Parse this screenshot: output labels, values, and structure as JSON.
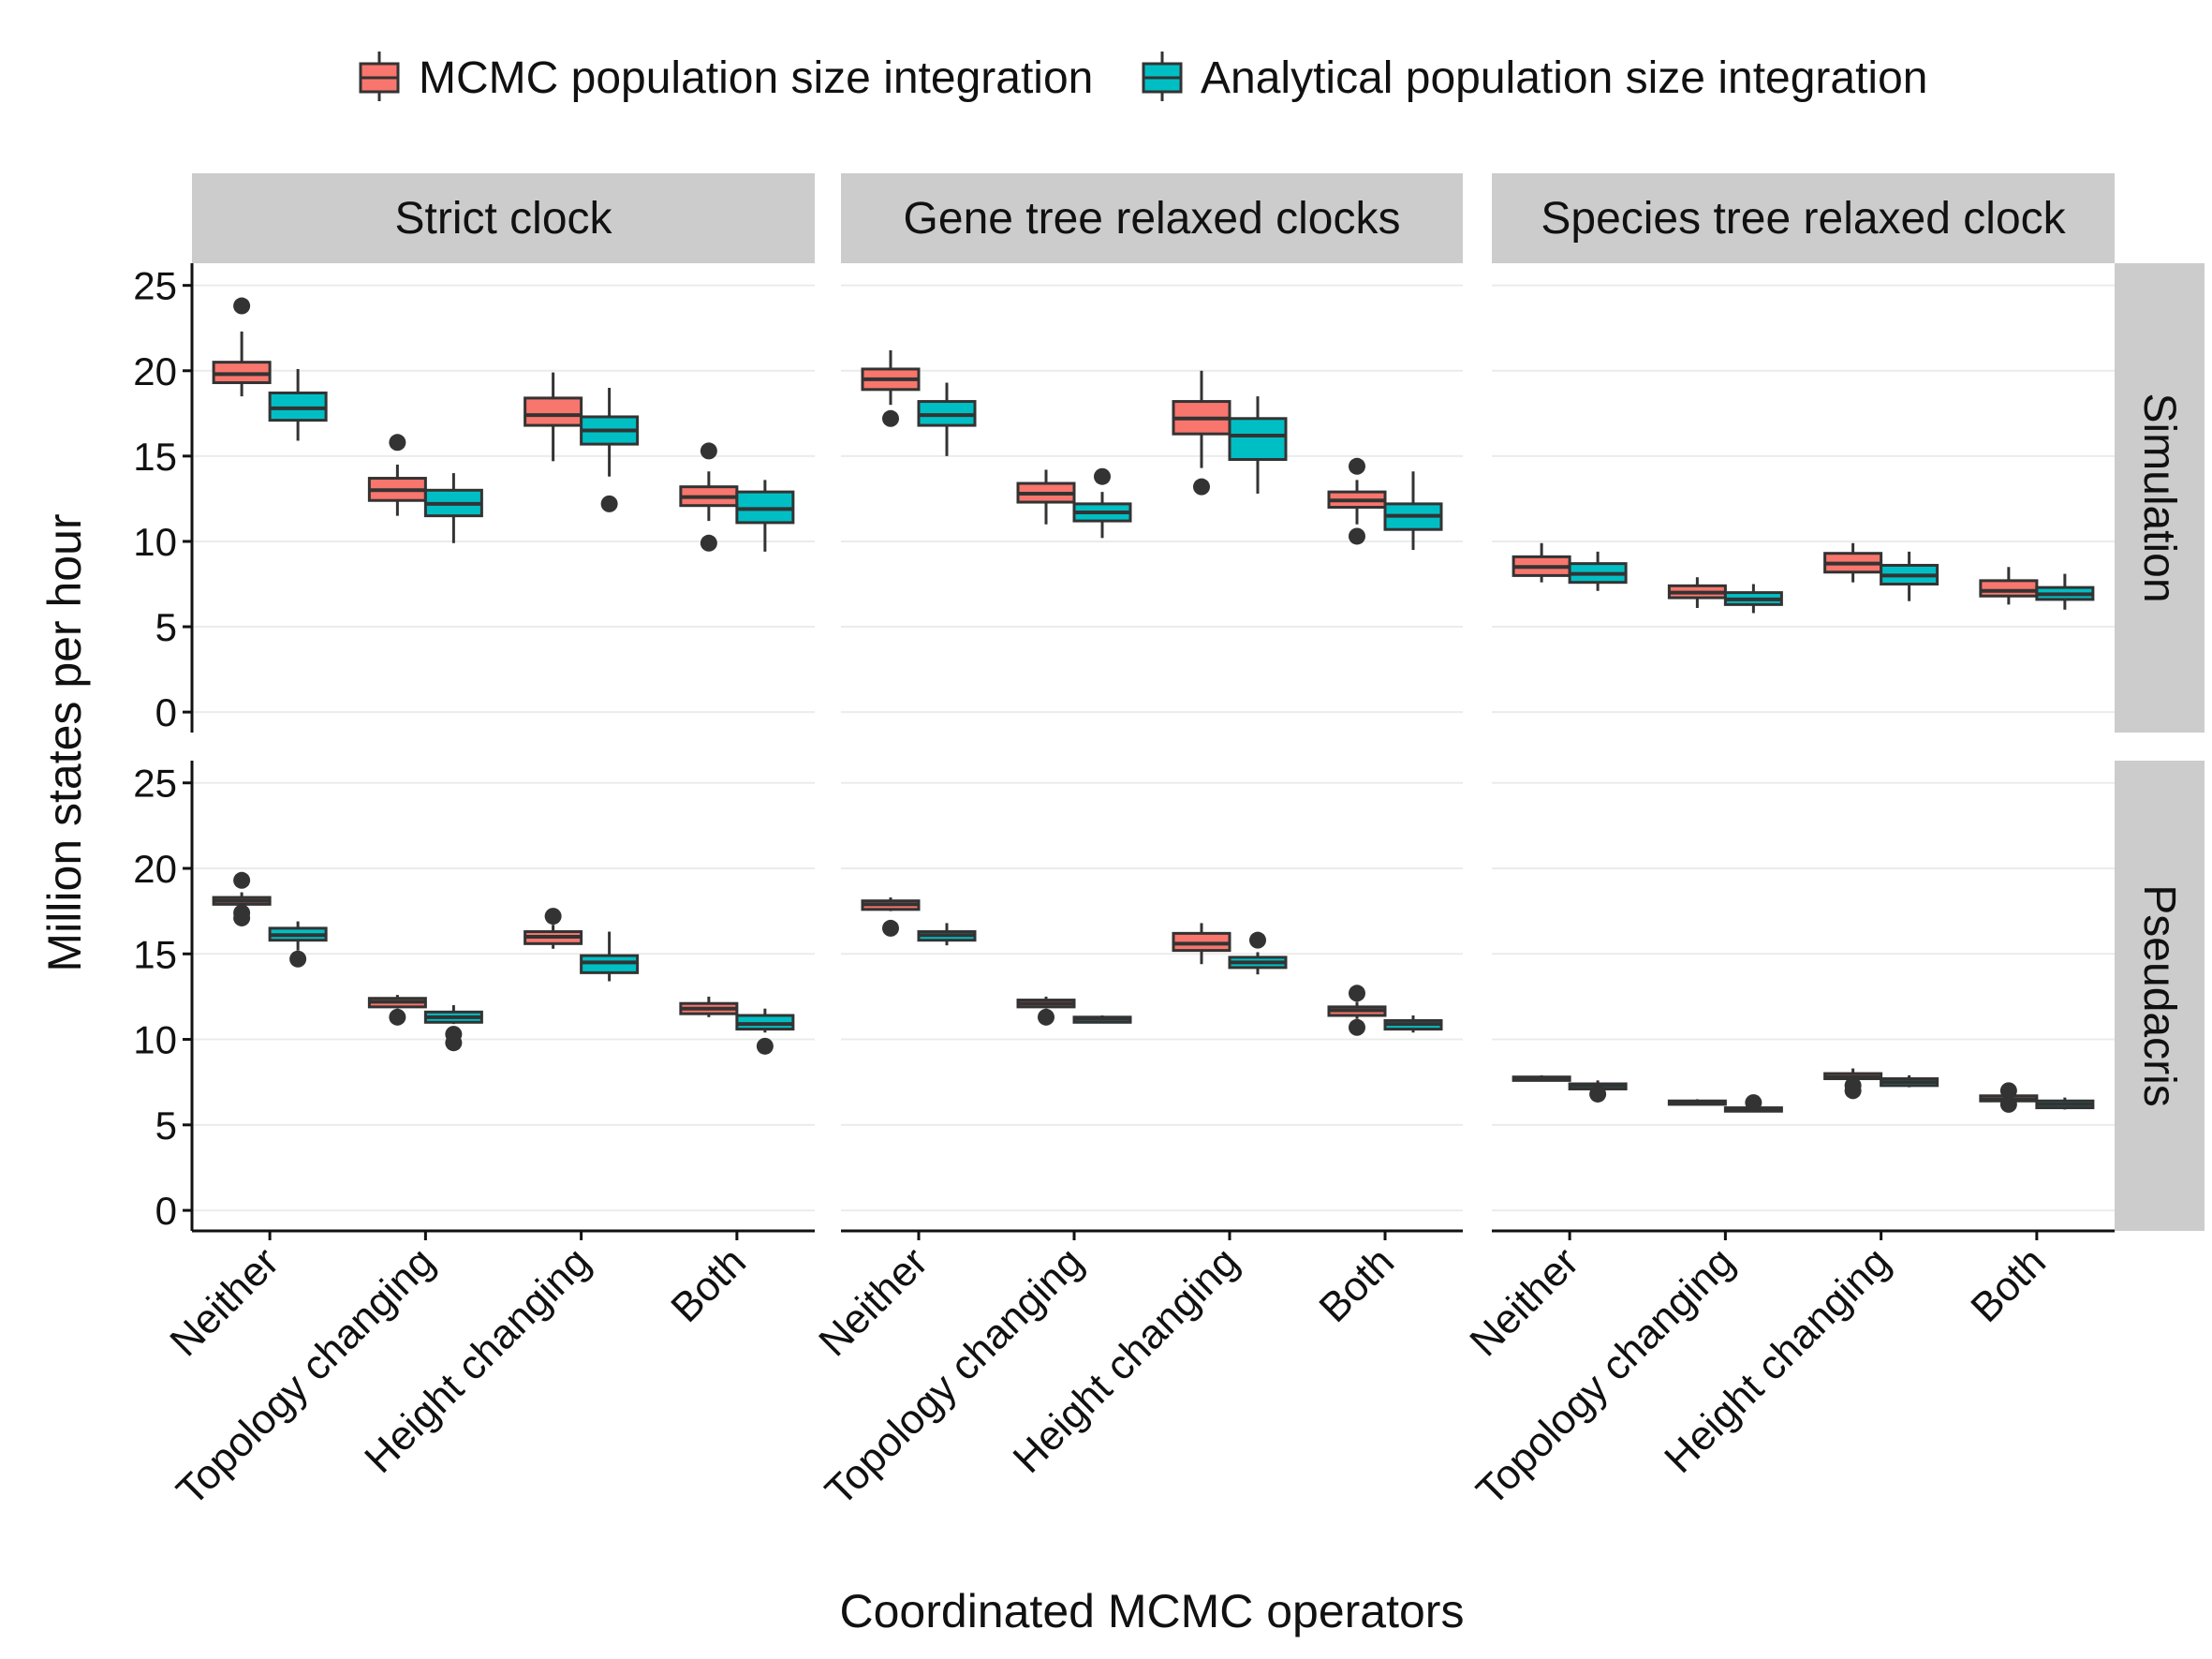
{
  "chart_data": {
    "type": "boxplot",
    "facet_columns": [
      "Strict clock",
      "Gene tree relaxed clocks",
      "Species tree relaxed clock"
    ],
    "facet_rows": [
      "Simulation",
      "Pseudacris"
    ],
    "categories": [
      "Neither",
      "Topology changing",
      "Height changing",
      "Both"
    ],
    "series": [
      {
        "name": "MCMC population size integration",
        "color": "#F8766D"
      },
      {
        "name": "Analytical population size integration",
        "color": "#00BFC4"
      }
    ],
    "xlabel": "Coordinated MCMC operators",
    "ylabel": "Million states per hour",
    "yticks": [
      0,
      5,
      10,
      15,
      20,
      25
    ],
    "ylim": [
      -1.2,
      26.3
    ],
    "legend_position": "top",
    "grid": true,
    "panels": [
      {
        "column": "Strict clock",
        "row": "Simulation",
        "boxes": [
          {
            "category": "Neither",
            "series": "MCMC population size integration",
            "min": 18.5,
            "q1": 19.3,
            "median": 19.8,
            "q3": 20.5,
            "max": 22.3,
            "outliers": [
              23.8
            ]
          },
          {
            "category": "Neither",
            "series": "Analytical population size integration",
            "min": 15.9,
            "q1": 17.1,
            "median": 17.8,
            "q3": 18.7,
            "max": 20.1,
            "outliers": []
          },
          {
            "category": "Topology changing",
            "series": "MCMC population size integration",
            "min": 11.5,
            "q1": 12.4,
            "median": 13.0,
            "q3": 13.7,
            "max": 14.5,
            "outliers": [
              15.8
            ]
          },
          {
            "category": "Topology changing",
            "series": "Analytical population size integration",
            "min": 9.9,
            "q1": 11.5,
            "median": 12.2,
            "q3": 13.0,
            "max": 14.0,
            "outliers": []
          },
          {
            "category": "Height changing",
            "series": "MCMC population size integration",
            "min": 14.7,
            "q1": 16.8,
            "median": 17.4,
            "q3": 18.4,
            "max": 19.9,
            "outliers": []
          },
          {
            "category": "Height changing",
            "series": "Analytical population size integration",
            "min": 13.8,
            "q1": 15.7,
            "median": 16.5,
            "q3": 17.3,
            "max": 19.0,
            "outliers": [
              12.2
            ]
          },
          {
            "category": "Both",
            "series": "MCMC population size integration",
            "min": 11.2,
            "q1": 12.1,
            "median": 12.6,
            "q3": 13.2,
            "max": 14.1,
            "outliers": [
              15.3,
              9.9
            ]
          },
          {
            "category": "Both",
            "series": "Analytical population size integration",
            "min": 9.4,
            "q1": 11.1,
            "median": 11.9,
            "q3": 12.9,
            "max": 13.6,
            "outliers": []
          }
        ]
      },
      {
        "column": "Gene tree relaxed clocks",
        "row": "Simulation",
        "boxes": [
          {
            "category": "Neither",
            "series": "MCMC population size integration",
            "min": 18.0,
            "q1": 18.9,
            "median": 19.5,
            "q3": 20.1,
            "max": 21.2,
            "outliers": [
              17.2
            ]
          },
          {
            "category": "Neither",
            "series": "Analytical population size integration",
            "min": 15.0,
            "q1": 16.8,
            "median": 17.4,
            "q3": 18.2,
            "max": 19.3,
            "outliers": []
          },
          {
            "category": "Topology changing",
            "series": "MCMC population size integration",
            "min": 11.0,
            "q1": 12.3,
            "median": 12.8,
            "q3": 13.4,
            "max": 14.2,
            "outliers": []
          },
          {
            "category": "Topology changing",
            "series": "Analytical population size integration",
            "min": 10.2,
            "q1": 11.2,
            "median": 11.7,
            "q3": 12.2,
            "max": 12.9,
            "outliers": [
              13.8
            ]
          },
          {
            "category": "Height changing",
            "series": "MCMC population size integration",
            "min": 14.3,
            "q1": 16.3,
            "median": 17.2,
            "q3": 18.2,
            "max": 20.0,
            "outliers": [
              13.2
            ]
          },
          {
            "category": "Height changing",
            "series": "Analytical population size integration",
            "min": 12.8,
            "q1": 14.8,
            "median": 16.2,
            "q3": 17.2,
            "max": 18.5,
            "outliers": []
          },
          {
            "category": "Both",
            "series": "MCMC population size integration",
            "min": 11.0,
            "q1": 12.0,
            "median": 12.4,
            "q3": 12.9,
            "max": 13.6,
            "outliers": [
              14.4,
              10.3
            ]
          },
          {
            "category": "Both",
            "series": "Analytical population size integration",
            "min": 9.5,
            "q1": 10.7,
            "median": 11.5,
            "q3": 12.2,
            "max": 14.1,
            "outliers": []
          }
        ]
      },
      {
        "column": "Species tree relaxed clock",
        "row": "Simulation",
        "boxes": [
          {
            "category": "Neither",
            "series": "MCMC population size integration",
            "min": 7.6,
            "q1": 8.0,
            "median": 8.5,
            "q3": 9.1,
            "max": 9.9,
            "outliers": []
          },
          {
            "category": "Neither",
            "series": "Analytical population size integration",
            "min": 7.1,
            "q1": 7.6,
            "median": 8.1,
            "q3": 8.7,
            "max": 9.4,
            "outliers": []
          },
          {
            "category": "Topology changing",
            "series": "MCMC population size integration",
            "min": 6.1,
            "q1": 6.7,
            "median": 7.0,
            "q3": 7.4,
            "max": 7.9,
            "outliers": []
          },
          {
            "category": "Topology changing",
            "series": "Analytical population size integration",
            "min": 5.8,
            "q1": 6.3,
            "median": 6.6,
            "q3": 7.0,
            "max": 7.5,
            "outliers": []
          },
          {
            "category": "Height changing",
            "series": "MCMC population size integration",
            "min": 7.6,
            "q1": 8.2,
            "median": 8.7,
            "q3": 9.3,
            "max": 9.9,
            "outliers": []
          },
          {
            "category": "Height changing",
            "series": "Analytical population size integration",
            "min": 6.5,
            "q1": 7.5,
            "median": 8.0,
            "q3": 8.6,
            "max": 9.4,
            "outliers": []
          },
          {
            "category": "Both",
            "series": "MCMC population size integration",
            "min": 6.3,
            "q1": 6.8,
            "median": 7.1,
            "q3": 7.7,
            "max": 8.5,
            "outliers": []
          },
          {
            "category": "Both",
            "series": "Analytical population size integration",
            "min": 6.0,
            "q1": 6.6,
            "median": 6.9,
            "q3": 7.3,
            "max": 8.1,
            "outliers": []
          }
        ]
      },
      {
        "column": "Strict clock",
        "row": "Pseudacris",
        "boxes": [
          {
            "category": "Neither",
            "series": "MCMC population size integration",
            "min": 17.8,
            "q1": 17.9,
            "median": 18.1,
            "q3": 18.3,
            "max": 18.6,
            "outliers": [
              19.3,
              17.4,
              17.1
            ]
          },
          {
            "category": "Neither",
            "series": "Analytical population size integration",
            "min": 15.2,
            "q1": 15.8,
            "median": 16.1,
            "q3": 16.5,
            "max": 16.9,
            "outliers": [
              14.7
            ]
          },
          {
            "category": "Topology changing",
            "series": "MCMC population size integration",
            "min": 11.8,
            "q1": 11.9,
            "median": 12.2,
            "q3": 12.4,
            "max": 12.6,
            "outliers": [
              11.3
            ]
          },
          {
            "category": "Topology changing",
            "series": "Analytical population size integration",
            "min": 10.9,
            "q1": 11.0,
            "median": 11.3,
            "q3": 11.6,
            "max": 12.0,
            "outliers": [
              10.3,
              9.8
            ]
          },
          {
            "category": "Height changing",
            "series": "MCMC population size integration",
            "min": 15.3,
            "q1": 15.6,
            "median": 16.0,
            "q3": 16.3,
            "max": 16.7,
            "outliers": [
              17.2
            ]
          },
          {
            "category": "Height changing",
            "series": "Analytical population size integration",
            "min": 13.4,
            "q1": 13.9,
            "median": 14.5,
            "q3": 14.9,
            "max": 16.3,
            "outliers": []
          },
          {
            "category": "Both",
            "series": "MCMC population size integration",
            "min": 11.3,
            "q1": 11.5,
            "median": 11.8,
            "q3": 12.1,
            "max": 12.5,
            "outliers": []
          },
          {
            "category": "Both",
            "series": "Analytical population size integration",
            "min": 10.4,
            "q1": 10.6,
            "median": 10.9,
            "q3": 11.4,
            "max": 11.8,
            "outliers": [
              9.6
            ]
          }
        ]
      },
      {
        "column": "Gene tree relaxed clocks",
        "row": "Pseudacris",
        "boxes": [
          {
            "category": "Neither",
            "series": "MCMC population size integration",
            "min": 17.5,
            "q1": 17.6,
            "median": 17.9,
            "q3": 18.1,
            "max": 18.3,
            "outliers": [
              16.5
            ]
          },
          {
            "category": "Neither",
            "series": "Analytical population size integration",
            "min": 15.5,
            "q1": 15.8,
            "median": 16.1,
            "q3": 16.3,
            "max": 16.8,
            "outliers": []
          },
          {
            "category": "Topology changing",
            "series": "MCMC population size integration",
            "min": 11.8,
            "q1": 11.9,
            "median": 12.1,
            "q3": 12.3,
            "max": 12.5,
            "outliers": [
              11.3
            ]
          },
          {
            "category": "Topology changing",
            "series": "Analytical population size integration",
            "min": 11.0,
            "q1": 11.0,
            "median": 11.2,
            "q3": 11.3,
            "max": 11.4,
            "outliers": []
          },
          {
            "category": "Height changing",
            "series": "MCMC population size integration",
            "min": 14.4,
            "q1": 15.2,
            "median": 15.6,
            "q3": 16.2,
            "max": 16.8,
            "outliers": []
          },
          {
            "category": "Height changing",
            "series": "Analytical population size integration",
            "min": 13.8,
            "q1": 14.2,
            "median": 14.5,
            "q3": 14.8,
            "max": 15.1,
            "outliers": [
              15.8
            ]
          },
          {
            "category": "Both",
            "series": "MCMC population size integration",
            "min": 11.2,
            "q1": 11.4,
            "median": 11.7,
            "q3": 11.9,
            "max": 12.2,
            "outliers": [
              12.7,
              10.7
            ]
          },
          {
            "category": "Both",
            "series": "Analytical population size integration",
            "min": 10.4,
            "q1": 10.6,
            "median": 10.9,
            "q3": 11.1,
            "max": 11.4,
            "outliers": []
          }
        ]
      },
      {
        "column": "Species tree relaxed clock",
        "row": "Pseudacris",
        "boxes": [
          {
            "category": "Neither",
            "series": "MCMC population size integration",
            "min": 7.6,
            "q1": 7.6,
            "median": 7.7,
            "q3": 7.8,
            "max": 7.9,
            "outliers": []
          },
          {
            "category": "Neither",
            "series": "Analytical population size integration",
            "min": 7.0,
            "q1": 7.1,
            "median": 7.3,
            "q3": 7.4,
            "max": 7.6,
            "outliers": [
              6.8
            ]
          },
          {
            "category": "Topology changing",
            "series": "MCMC population size integration",
            "min": 6.2,
            "q1": 6.2,
            "median": 6.3,
            "q3": 6.4,
            "max": 6.5,
            "outliers": []
          },
          {
            "category": "Topology changing",
            "series": "Analytical population size integration",
            "min": 5.8,
            "q1": 5.8,
            "median": 5.9,
            "q3": 6.0,
            "max": 6.1,
            "outliers": [
              6.3
            ]
          },
          {
            "category": "Height changing",
            "series": "MCMC population size integration",
            "min": 7.6,
            "q1": 7.7,
            "median": 7.8,
            "q3": 8.0,
            "max": 8.3,
            "outliers": [
              7.3,
              7.0
            ]
          },
          {
            "category": "Height changing",
            "series": "Analytical population size integration",
            "min": 7.2,
            "q1": 7.3,
            "median": 7.5,
            "q3": 7.7,
            "max": 7.9,
            "outliers": []
          },
          {
            "category": "Both",
            "series": "MCMC population size integration",
            "min": 6.3,
            "q1": 6.4,
            "median": 6.5,
            "q3": 6.7,
            "max": 6.9,
            "outliers": [
              7.0,
              6.2
            ]
          },
          {
            "category": "Both",
            "series": "Analytical population size integration",
            "min": 5.9,
            "q1": 6.0,
            "median": 6.2,
            "q3": 6.4,
            "max": 6.6,
            "outliers": []
          }
        ]
      }
    ]
  }
}
